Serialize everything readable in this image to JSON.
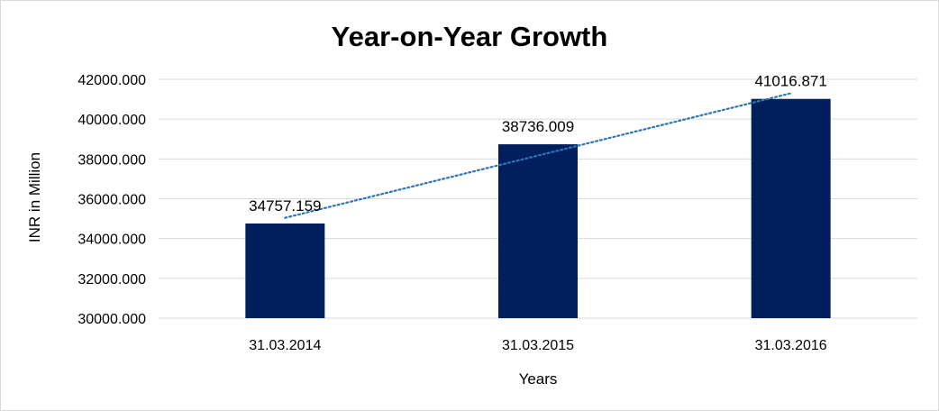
{
  "chart_data": {
    "type": "bar",
    "title": "Year-on-Year Growth",
    "xlabel": "Years",
    "ylabel": "INR in Million",
    "categories": [
      "31.03.2014",
      "31.03.2015",
      "31.03.2016"
    ],
    "values": [
      34757.159,
      38736.009,
      41016.871
    ],
    "data_labels": [
      "34757.159",
      "38736.009",
      "41016.871"
    ],
    "ylim": [
      30000,
      42000
    ],
    "yticks": [
      30000,
      32000,
      34000,
      36000,
      38000,
      40000,
      42000
    ],
    "ytick_labels": [
      "30000.000",
      "32000.000",
      "34000.000",
      "36000.000",
      "38000.000",
      "40000.000",
      "42000.000"
    ],
    "bar_color": "#001f5c",
    "trendline": {
      "type": "linear",
      "style": "dotted",
      "color": "#2e75b6"
    },
    "grid": true,
    "legend": "none"
  }
}
